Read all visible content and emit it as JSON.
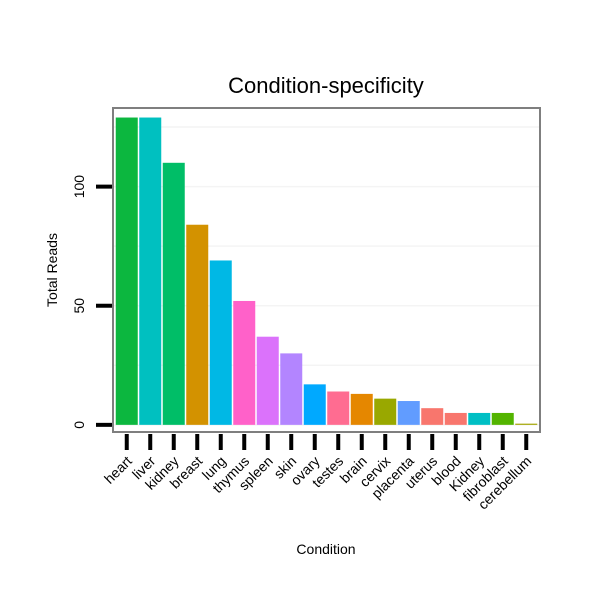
{
  "chart_data": {
    "type": "bar",
    "title": "Condition-specificity",
    "xlabel": "Condition",
    "ylabel": "Total Reads",
    "ylim": [
      -3,
      133
    ],
    "yticks": [
      0,
      50,
      100
    ],
    "grid": true,
    "legend": "none",
    "categories": [
      "heart",
      "liver",
      "kidney",
      "breast",
      "lung",
      "thymus",
      "spleen",
      "skin",
      "ovary",
      "testes",
      "brain",
      "cervix",
      "placenta",
      "uterus",
      "blood",
      "Kidney",
      "fibroblast",
      "cerebellum"
    ],
    "values": [
      129,
      129,
      110,
      84,
      69,
      52,
      37,
      30,
      17,
      14,
      13,
      11,
      10,
      7,
      5,
      5,
      5,
      0.5
    ],
    "colors": [
      "#0cb73f",
      "#00c0c0",
      "#00be67",
      "#d39200",
      "#00b8e5",
      "#ff61c9",
      "#db72fb",
      "#b385ff",
      "#00a9ff",
      "#ff6c91",
      "#e58700",
      "#99a800",
      "#619cff",
      "#f8766d",
      "#f8766d",
      "#00bfc4",
      "#53b400",
      "#a3a500"
    ]
  }
}
